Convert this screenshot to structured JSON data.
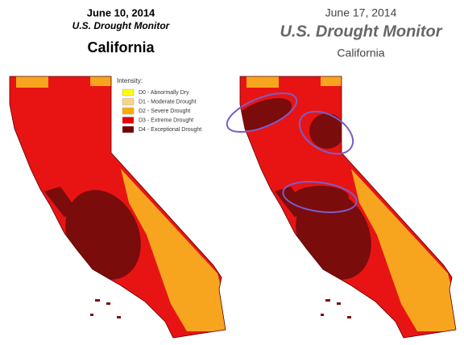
{
  "panels": [
    {
      "date": "June 10, 2014",
      "title": "U.S. Drought Monitor",
      "region": "California"
    },
    {
      "date": "June 17, 2014",
      "title": "U.S. Drought Monitor",
      "region": "California"
    }
  ],
  "legend": {
    "title": "Intensity:",
    "items": [
      {
        "label": "D0 - Abnormally Dry",
        "color": "#ffff00"
      },
      {
        "label": "D1 - Moderate Drought",
        "color": "#fcd37f"
      },
      {
        "label": "D2 - Severe Drought",
        "color": "#ffaa00"
      },
      {
        "label": "D3 - Extreme Drought",
        "color": "#e60000"
      },
      {
        "label": "D4 - Exceptional Drought",
        "color": "#730000"
      }
    ]
  }
}
